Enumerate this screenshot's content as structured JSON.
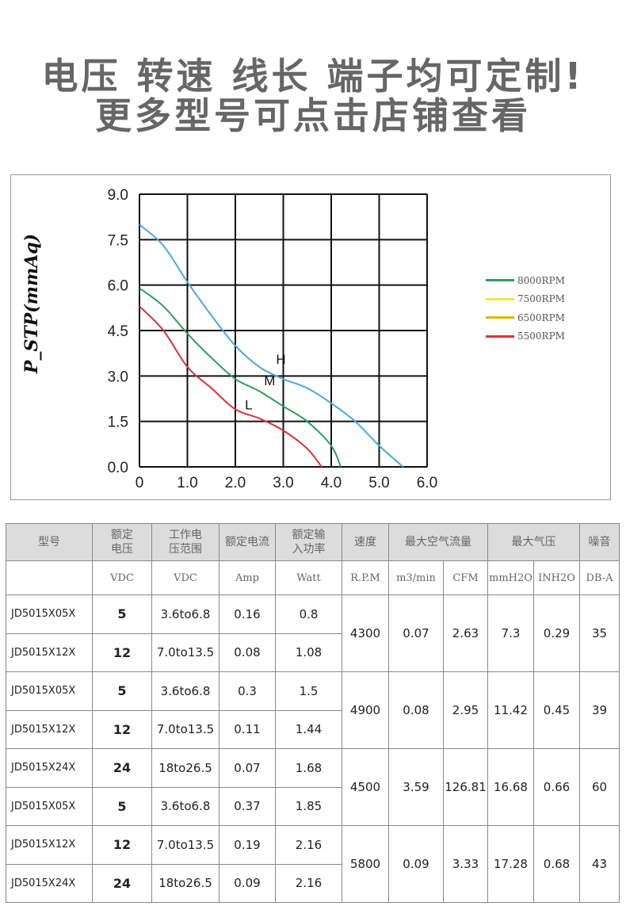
{
  "banner": {
    "line1": "电压 转速 线长 端子均可定制!",
    "line2": "更多型号可点击店铺查看"
  },
  "chart_data": {
    "type": "line",
    "ylabel": "P_STP(mmAq)",
    "xlabel": "",
    "xlim": [
      0,
      6.0
    ],
    "ylim": [
      0,
      9.0
    ],
    "xticks": [
      "0",
      "1.0",
      "2.0",
      "3.0",
      "4.0",
      "5.0",
      "6.0"
    ],
    "yticks": [
      "0.0",
      "1.5",
      "3.0",
      "4.5",
      "6.0",
      "7.5",
      "9.0"
    ],
    "grid": true,
    "legend_position": "right",
    "legend": [
      {
        "name": "8000RPM",
        "color": "#2e9e5b"
      },
      {
        "name": "7500RPM",
        "color": "#f3e43a"
      },
      {
        "name": "6500RPM",
        "color": "#e0b400"
      },
      {
        "name": "5500RPM",
        "color": "#d9343a"
      }
    ],
    "series": [
      {
        "name": "H",
        "color": "#4aa8e0",
        "x": [
          0,
          0.5,
          1,
          1.5,
          2,
          2.5,
          3,
          3.5,
          4,
          4.5,
          5,
          5.5
        ],
        "y": [
          8.0,
          7.3,
          6.1,
          5.0,
          4.0,
          3.3,
          2.9,
          2.6,
          2.1,
          1.5,
          0.7,
          0
        ]
      },
      {
        "name": "M",
        "color": "#2e9e5b",
        "x": [
          0,
          0.5,
          1,
          1.5,
          2,
          2.5,
          3,
          3.5,
          4,
          4.2
        ],
        "y": [
          5.9,
          5.3,
          4.4,
          3.6,
          2.9,
          2.5,
          2.0,
          1.5,
          0.7,
          0
        ]
      },
      {
        "name": "L",
        "color": "#d9343a",
        "x": [
          0,
          0.5,
          1,
          1.5,
          2,
          2.5,
          3,
          3.5,
          3.8
        ],
        "y": [
          5.3,
          4.5,
          3.3,
          2.6,
          1.9,
          1.6,
          1.2,
          0.6,
          0
        ]
      }
    ],
    "annotations": [
      {
        "text": "H",
        "x": 2.85,
        "y": 3.4
      },
      {
        "text": "M",
        "x": 2.6,
        "y": 2.7
      },
      {
        "text": "L",
        "x": 2.2,
        "y": 1.9
      }
    ]
  },
  "table": {
    "headers": [
      "型号",
      "额定\n电压",
      "工作电\n压范围",
      "额定电流",
      "额定输\n入功率",
      "速度",
      "最大空气流量",
      "最大气压",
      "噪音"
    ],
    "units": [
      "",
      "VDC",
      "VDC",
      "Amp",
      "Watt",
      "R.P.M",
      "m3/min",
      "CFM",
      "mmH2O",
      "INH2O",
      "DB-A"
    ],
    "groups": [
      {
        "rpm": "4300",
        "m3": "0.07",
        "cfm": "2.63",
        "mm": "7.3",
        "inh": "0.29",
        "db": "35",
        "rows": [
          [
            "JD5015X05X",
            "5",
            "3.6to6.8",
            "0.16",
            "0.8"
          ],
          [
            "JD5015X12X",
            "12",
            "7.0to13.5",
            "0.08",
            "1.08"
          ]
        ]
      },
      {
        "rpm": "4900",
        "m3": "0.08",
        "cfm": "2.95",
        "mm": "11.42",
        "inh": "0.45",
        "db": "39",
        "rows": [
          [
            "JD5015X05X",
            "5",
            "3.6to6.8",
            "0.3",
            "1.5"
          ],
          [
            "JD5015X12X",
            "12",
            "7.0to13.5",
            "0.11",
            "1.44"
          ]
        ]
      },
      {
        "rpm": "4500",
        "m3": "3.59",
        "cfm": "126.81",
        "mm": "16.68",
        "inh": "0.66",
        "db": "60",
        "rows": [
          [
            "JD5015X24X",
            "24",
            "18to26.5",
            "0.07",
            "1.68"
          ],
          [
            "JD5015X05X",
            "5",
            "3.6to6.8",
            "0.37",
            "1.85"
          ]
        ]
      },
      {
        "rpm": "5800",
        "m3": "0.09",
        "cfm": "3.33",
        "mm": "17.28",
        "inh": "0.68",
        "db": "43",
        "rows": [
          [
            "JD5015X12X",
            "12",
            "7.0to13.5",
            "0.19",
            "2.16"
          ],
          [
            "JD5015X24X",
            "24",
            "18to26.5",
            "0.09",
            "2.16"
          ]
        ]
      }
    ]
  }
}
